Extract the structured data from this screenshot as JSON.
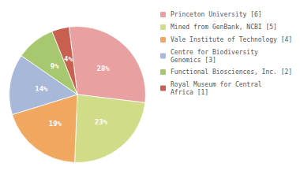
{
  "chart_data": {
    "type": "pie",
    "categories": [
      "Princeton University [6]",
      "Mined from GenBank, NCBI [5]",
      "Vale Institute of Technology [4]",
      "Centre for Biodiversity\nGenomics [3]",
      "Functional Biosciences, Inc. [2]",
      "Royal Museum for Central\nAfrica [1]"
    ],
    "values": [
      28,
      23,
      19,
      14,
      9,
      4
    ],
    "value_labels": [
      "28%",
      "23%",
      "19%",
      "14%",
      "9%",
      "4%"
    ],
    "data_labels": true,
    "colors": [
      "#e8a0a0",
      "#d0dc88",
      "#f0a860",
      "#a8b8d8",
      "#a8c870",
      "#c86050"
    ],
    "legend": "upper right"
  }
}
